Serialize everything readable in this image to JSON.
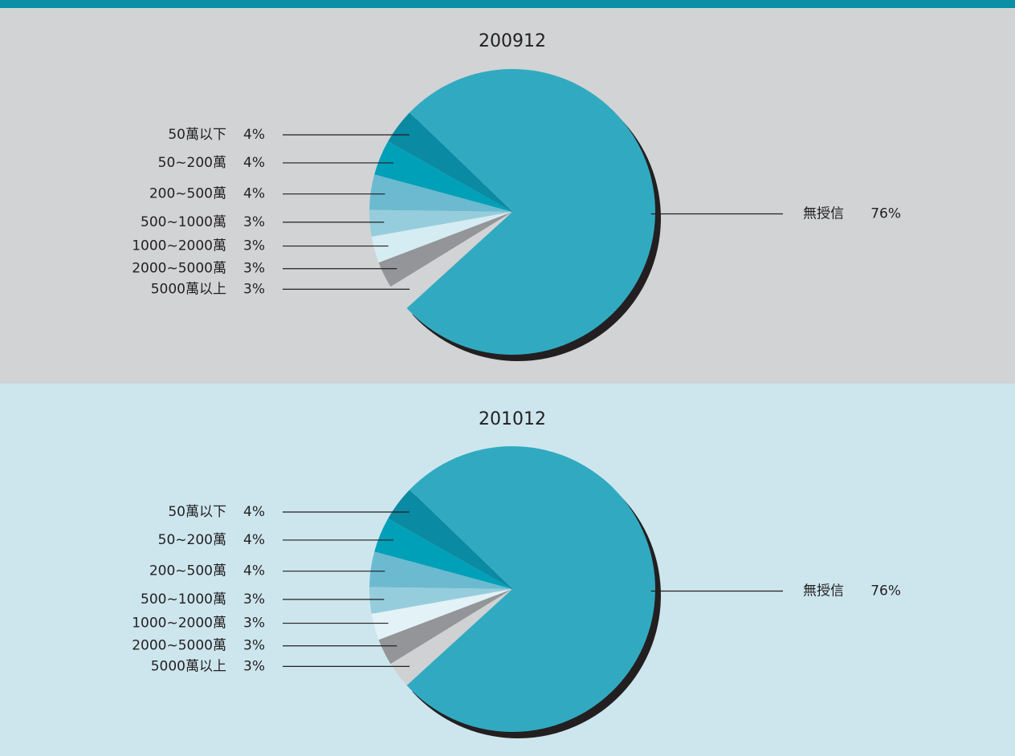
{
  "chart_data": [
    {
      "type": "pie",
      "title": "200912",
      "categories": [
        "50萬以下",
        "50~200萬",
        "200~500萬",
        "500~1000萬",
        "1000~2000萬",
        "2000~5000萬",
        "5000萬以上",
        "無授信"
      ],
      "values": [
        4,
        4,
        4,
        3,
        3,
        3,
        3,
        76
      ],
      "value_labels": [
        "4%",
        "4%",
        "4%",
        "3%",
        "3%",
        "3%",
        "3%",
        "76%"
      ],
      "colors": [
        "#0a8aa3",
        "#00a0b8",
        "#6bbad0",
        "#96cddc",
        "#d5ecf2",
        "#939598",
        "#d1d3d4",
        "#31aac1"
      ]
    },
    {
      "type": "pie",
      "title": "201012",
      "categories": [
        "50萬以下",
        "50~200萬",
        "200~500萬",
        "500~1000萬",
        "1000~2000萬",
        "2000~5000萬",
        "5000萬以上",
        "無授信"
      ],
      "values": [
        4,
        4,
        4,
        3,
        3,
        3,
        3,
        76
      ],
      "value_labels": [
        "4%",
        "4%",
        "4%",
        "3%",
        "3%",
        "3%",
        "3%",
        "76%"
      ],
      "colors": [
        "#0a8aa3",
        "#00a0b8",
        "#6bbad0",
        "#96cddc",
        "#e3f2f6",
        "#939598",
        "#cfd1d2",
        "#31aac1"
      ]
    }
  ]
}
